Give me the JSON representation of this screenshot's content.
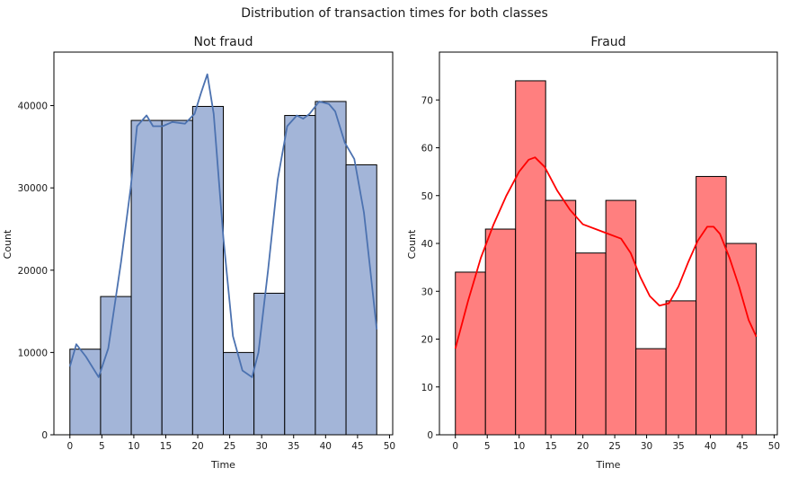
{
  "figure": {
    "suptitle": "Distribution of transaction times for both classes"
  },
  "chart_data": [
    {
      "type": "bar",
      "title": "Not fraud",
      "xlabel": "Time",
      "ylabel": "Count",
      "xlim": [
        -2.5,
        50.5
      ],
      "ylim": [
        0,
        46500
      ],
      "xticks": [
        0,
        5,
        10,
        15,
        20,
        25,
        30,
        35,
        40,
        45,
        50
      ],
      "yticks": [
        0,
        10000,
        20000,
        30000,
        40000
      ],
      "bin_edges": [
        0,
        4.8,
        9.6,
        14.4,
        19.2,
        24.0,
        28.8,
        33.6,
        38.4,
        43.2,
        48.0
      ],
      "values": [
        10400,
        16800,
        38200,
        38200,
        39900,
        10000,
        17200,
        38800,
        40500,
        32800
      ],
      "kde": {
        "x": [
          0,
          1,
          2.5,
          4.5,
          6,
          8,
          9.5,
          10.5,
          12,
          13,
          14.5,
          16,
          18,
          19.5,
          20.5,
          21.5,
          22.5,
          24,
          25.5,
          27,
          28.5,
          29.5,
          31,
          32.5,
          34,
          35.5,
          36.5,
          37.5,
          39,
          40.5,
          41.5,
          43,
          44.5,
          46,
          47,
          48
        ],
        "y": [
          8300,
          11000,
          9500,
          7000,
          10500,
          21000,
          30000,
          37500,
          38800,
          37500,
          37500,
          38000,
          37800,
          39000,
          41500,
          43800,
          39000,
          24000,
          12000,
          7800,
          7000,
          10000,
          20000,
          31000,
          37500,
          38800,
          38400,
          39000,
          40500,
          40200,
          39300,
          35500,
          33500,
          27000,
          20000,
          12800
        ]
      },
      "color": "#a3b5d8",
      "kde_color": "#4c72b0",
      "edge_color": "#000000"
    },
    {
      "type": "bar",
      "title": "Fraud",
      "xlabel": "Time",
      "ylabel": "Count",
      "xlim": [
        -2.5,
        50.5
      ],
      "ylim": [
        0,
        80
      ],
      "xticks": [
        0,
        5,
        10,
        15,
        20,
        25,
        30,
        35,
        40,
        45,
        50
      ],
      "yticks": [
        0,
        10,
        20,
        30,
        40,
        50,
        60,
        70
      ],
      "bin_edges": [
        0,
        4.72,
        9.44,
        14.16,
        18.88,
        23.6,
        28.32,
        33.04,
        37.76,
        42.48,
        47.2
      ],
      "values": [
        34,
        43,
        74,
        49,
        38,
        49,
        18,
        28,
        54,
        40
      ],
      "kde": {
        "x": [
          0,
          2,
          4,
          6,
          8,
          10,
          11.5,
          12.5,
          14,
          16,
          18,
          20,
          22,
          24,
          26,
          27.5,
          29,
          30.5,
          32,
          33.5,
          35,
          36.5,
          38,
          39.5,
          40.5,
          41.5,
          43,
          44.5,
          46,
          47.2
        ],
        "y": [
          18,
          28,
          37,
          44,
          50,
          55,
          57.5,
          58,
          56,
          51,
          47,
          44,
          43,
          42,
          41,
          38,
          33,
          29,
          27,
          27.5,
          31,
          36,
          40.5,
          43.5,
          43.5,
          42,
          37,
          31,
          24,
          20.5
        ]
      },
      "color": "#ff7f7f",
      "kde_color": "#ff0000",
      "edge_color": "#000000"
    }
  ]
}
